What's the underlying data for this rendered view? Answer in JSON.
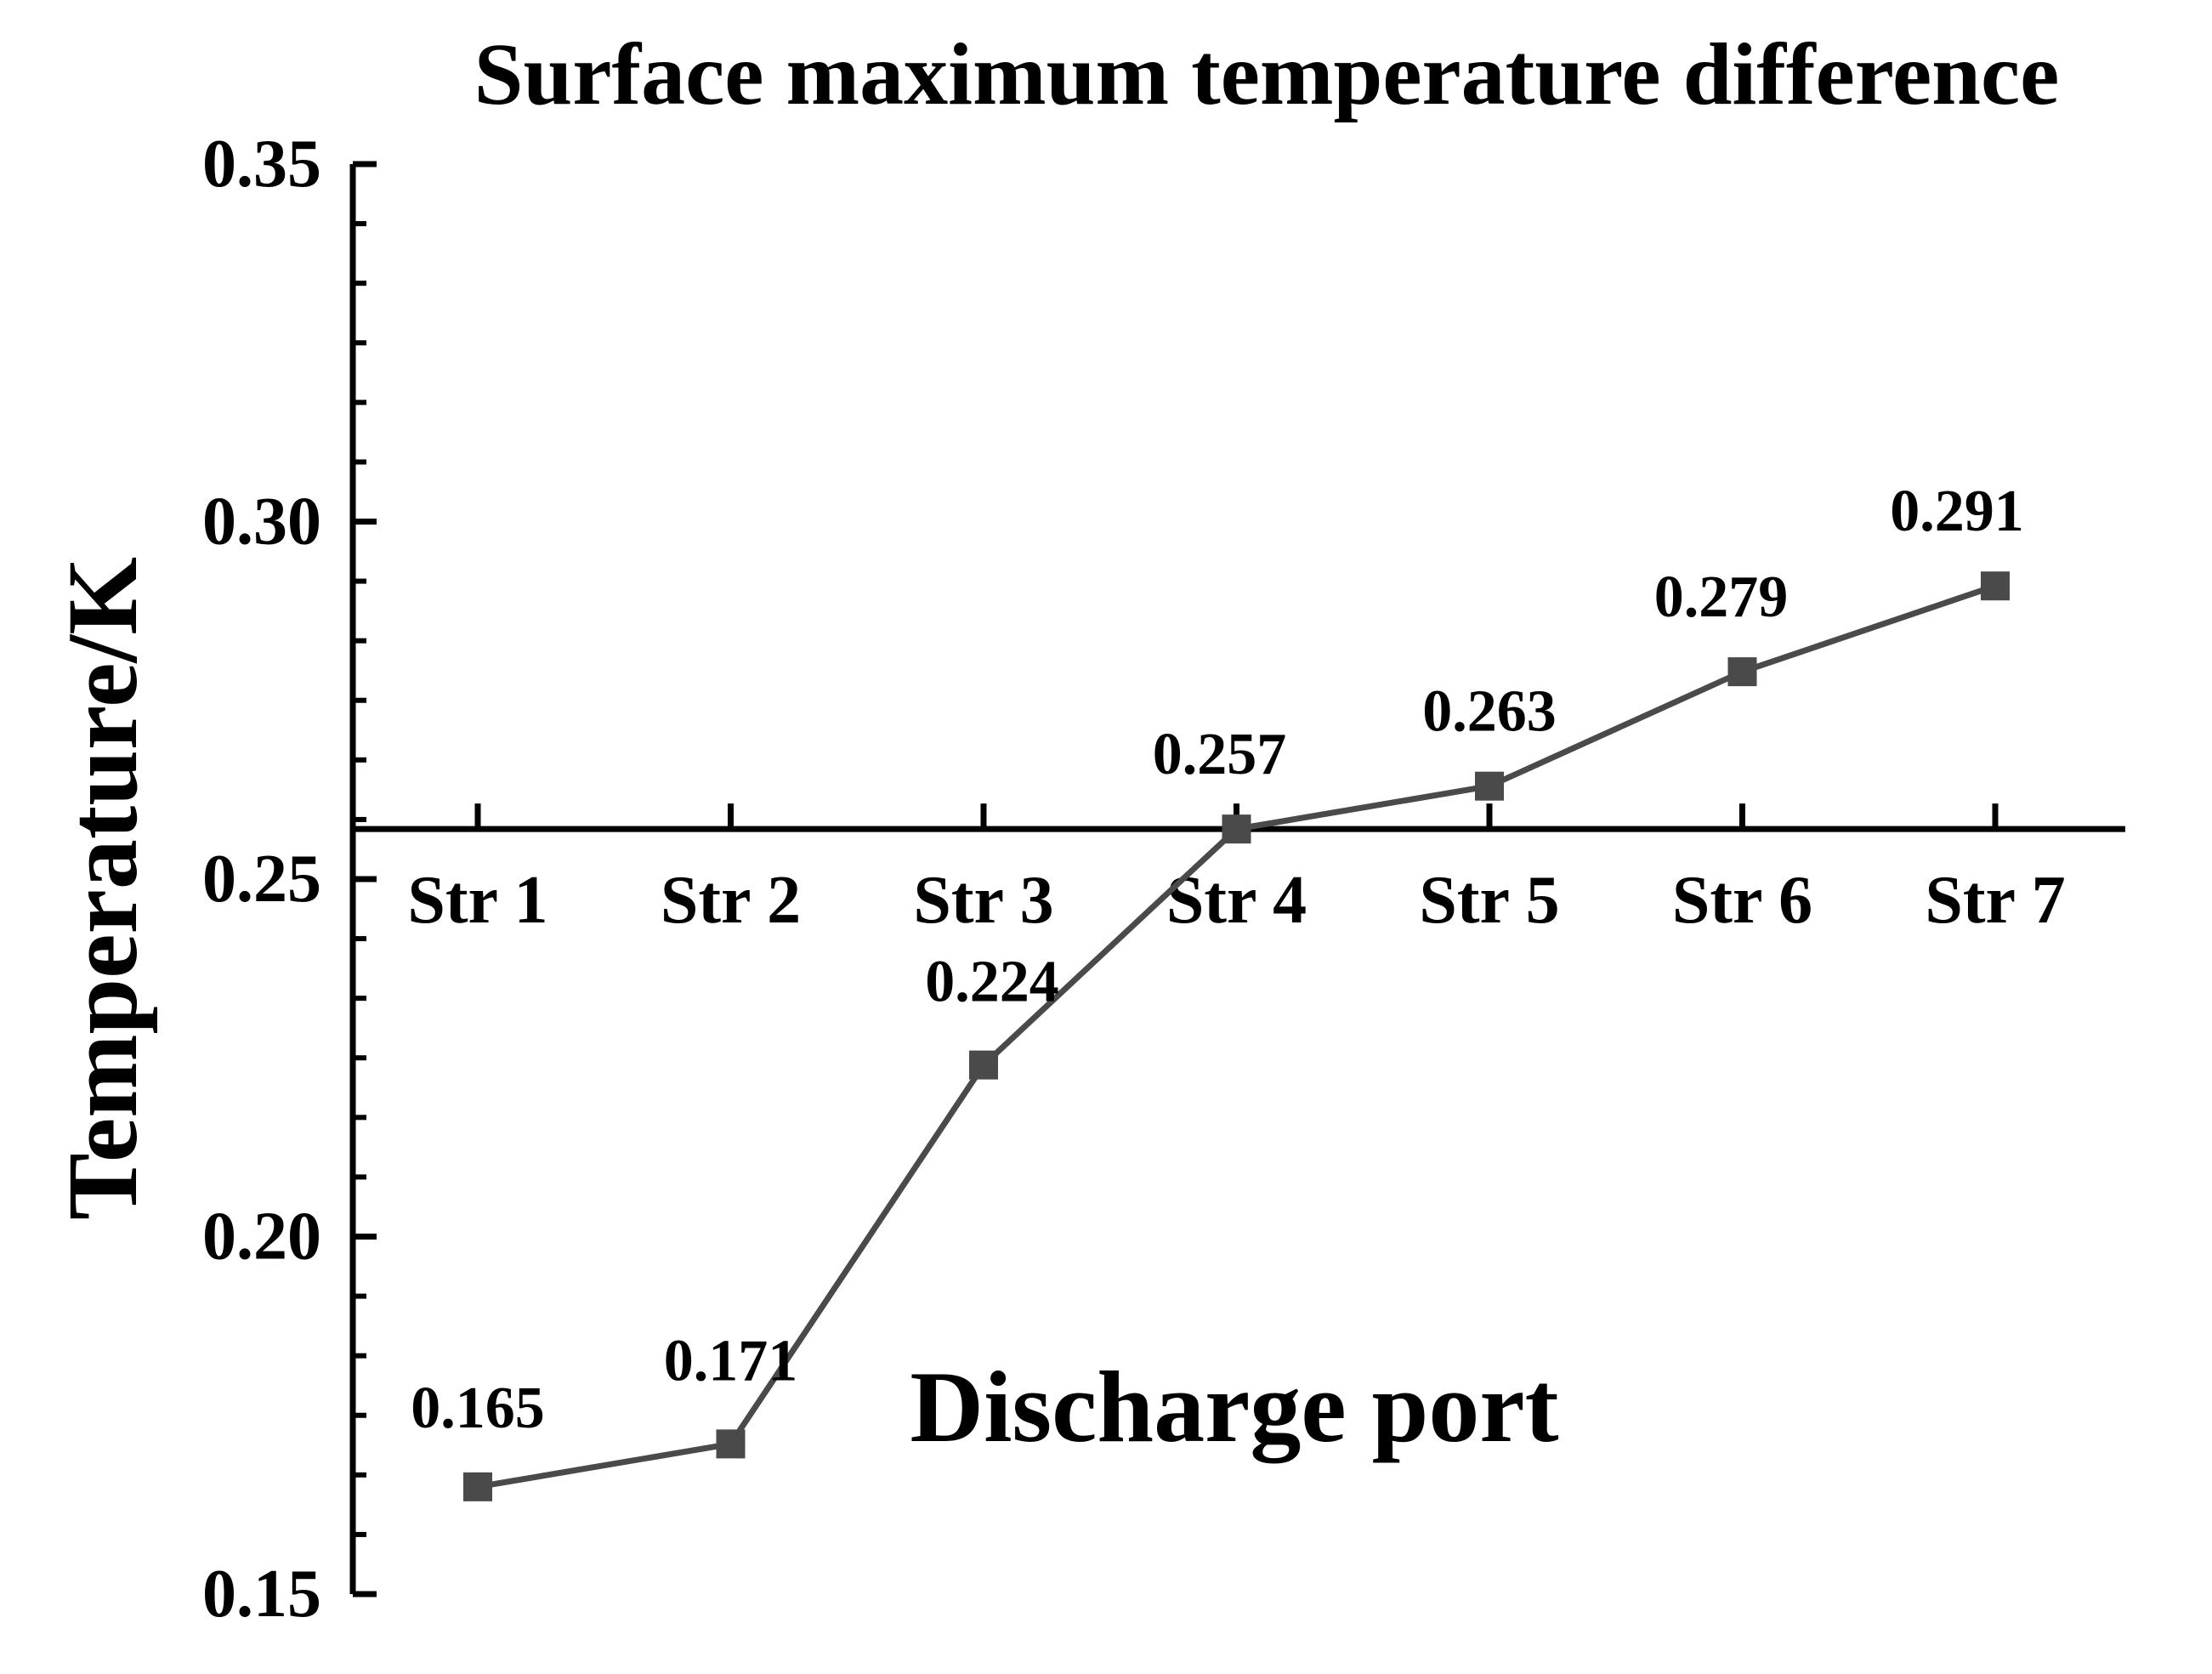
{
  "chart_data": {
    "type": "line",
    "title": "Surface maximum temperature difference",
    "xlabel": "Discharge port",
    "ylabel": "Temperature/K",
    "categories": [
      "Str 1",
      "Str 2",
      "Str 3",
      "Str 4",
      "Str 5",
      "Str 6",
      "Str 7"
    ],
    "series": [
      {
        "name": "Surface maximum temperature difference",
        "values": [
          0.165,
          0.171,
          0.224,
          0.257,
          0.263,
          0.279,
          0.291
        ],
        "data_labels": [
          "0.165",
          "0.171",
          "0.224",
          "0.257",
          "0.263",
          "0.279",
          "0.291"
        ]
      }
    ],
    "ylim": [
      0.15,
      0.35
    ],
    "yticks": [
      0.15,
      0.2,
      0.25,
      0.3,
      0.35
    ],
    "ytick_labels": [
      "0.15",
      "0.20",
      "0.25",
      "0.30",
      "0.35"
    ],
    "x_axis_crosses_at": 0.257,
    "grid": false,
    "marker": "square",
    "line_color": "#4a4a4a"
  }
}
